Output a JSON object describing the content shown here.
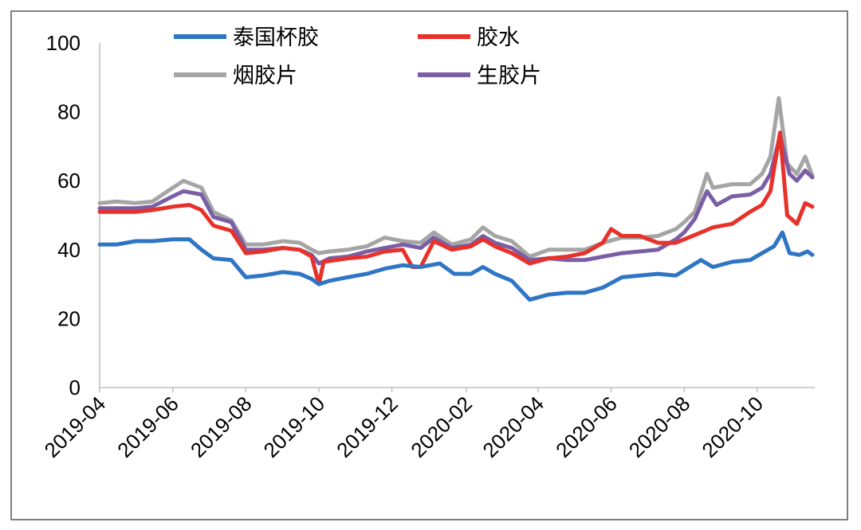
{
  "chart_data": {
    "type": "line",
    "title": "",
    "xlabel": "",
    "ylabel": "",
    "ylim": [
      0,
      100
    ],
    "y_ticks": [
      "0",
      "20",
      "40",
      "60",
      "80",
      "100"
    ],
    "x_ticks": [
      "2019-04",
      "2019-06",
      "2019-08",
      "2019-10",
      "2019-12",
      "2020-02",
      "2020-04",
      "2020-06",
      "2020-08",
      "2020-10"
    ],
    "grid": false,
    "legend_position": "top",
    "series": [
      {
        "name": "泰国杯胶",
        "color": "#2e75c6",
        "points": [
          [
            "2019-04-01",
            41.5
          ],
          [
            "2019-04-15",
            41.5
          ],
          [
            "2019-05-01",
            42.5
          ],
          [
            "2019-05-15",
            42.5
          ],
          [
            "2019-06-01",
            43
          ],
          [
            "2019-06-15",
            43
          ],
          [
            "2019-06-25",
            40
          ],
          [
            "2019-07-05",
            37.5
          ],
          [
            "2019-07-20",
            37
          ],
          [
            "2019-08-01",
            32
          ],
          [
            "2019-08-15",
            32.5
          ],
          [
            "2019-09-01",
            33.5
          ],
          [
            "2019-09-15",
            33
          ],
          [
            "2019-09-25",
            31.5
          ],
          [
            "2019-10-01",
            30
          ],
          [
            "2019-10-10",
            31
          ],
          [
            "2019-10-25",
            32
          ],
          [
            "2019-11-10",
            33
          ],
          [
            "2019-11-25",
            34.5
          ],
          [
            "2019-12-10",
            35.5
          ],
          [
            "2019-12-25",
            35
          ],
          [
            "2020-01-10",
            36
          ],
          [
            "2020-01-22",
            33
          ],
          [
            "2020-02-05",
            33
          ],
          [
            "2020-02-15",
            35
          ],
          [
            "2020-02-25",
            33
          ],
          [
            "2020-03-10",
            31
          ],
          [
            "2020-03-25",
            25.5
          ],
          [
            "2020-04-10",
            27
          ],
          [
            "2020-04-25",
            27.5
          ],
          [
            "2020-05-10",
            27.5
          ],
          [
            "2020-05-25",
            29
          ],
          [
            "2020-06-10",
            32
          ],
          [
            "2020-06-25",
            32.5
          ],
          [
            "2020-07-10",
            33
          ],
          [
            "2020-07-25",
            32.5
          ],
          [
            "2020-08-01",
            34
          ],
          [
            "2020-08-15",
            37
          ],
          [
            "2020-08-25",
            35
          ],
          [
            "2020-09-10",
            36.5
          ],
          [
            "2020-09-25",
            37
          ],
          [
            "2020-10-05",
            39
          ],
          [
            "2020-10-15",
            41
          ],
          [
            "2020-10-22",
            45
          ],
          [
            "2020-10-28",
            39
          ],
          [
            "2020-11-05",
            38.5
          ],
          [
            "2020-11-12",
            39.5
          ],
          [
            "2020-11-16",
            38.5
          ]
        ]
      },
      {
        "name": "胶水",
        "color": "#e8312a",
        "points": [
          [
            "2019-04-01",
            51
          ],
          [
            "2019-04-15",
            51
          ],
          [
            "2019-05-01",
            51
          ],
          [
            "2019-05-15",
            51.5
          ],
          [
            "2019-06-01",
            52.5
          ],
          [
            "2019-06-15",
            53
          ],
          [
            "2019-06-25",
            51.5
          ],
          [
            "2019-07-05",
            47
          ],
          [
            "2019-07-20",
            45.5
          ],
          [
            "2019-08-01",
            39
          ],
          [
            "2019-08-15",
            39.5
          ],
          [
            "2019-09-01",
            40.5
          ],
          [
            "2019-09-15",
            40
          ],
          [
            "2019-09-25",
            38
          ],
          [
            "2019-10-01",
            30
          ],
          [
            "2019-10-05",
            36.5
          ],
          [
            "2019-10-25",
            37.5
          ],
          [
            "2019-11-10",
            38
          ],
          [
            "2019-11-25",
            39.5
          ],
          [
            "2019-12-10",
            40
          ],
          [
            "2019-12-18",
            35
          ],
          [
            "2019-12-25",
            35
          ],
          [
            "2020-01-05",
            42.5
          ],
          [
            "2020-01-20",
            40
          ],
          [
            "2020-02-05",
            41
          ],
          [
            "2020-02-15",
            43
          ],
          [
            "2020-02-25",
            41
          ],
          [
            "2020-03-10",
            39
          ],
          [
            "2020-03-25",
            36
          ],
          [
            "2020-04-10",
            37.5
          ],
          [
            "2020-04-25",
            38
          ],
          [
            "2020-05-10",
            39
          ],
          [
            "2020-05-25",
            42
          ],
          [
            "2020-06-01",
            46
          ],
          [
            "2020-06-10",
            44
          ],
          [
            "2020-06-25",
            44
          ],
          [
            "2020-07-10",
            42
          ],
          [
            "2020-07-25",
            42
          ],
          [
            "2020-08-01",
            43
          ],
          [
            "2020-08-15",
            45
          ],
          [
            "2020-08-25",
            46.5
          ],
          [
            "2020-09-10",
            47.5
          ],
          [
            "2020-09-25",
            51
          ],
          [
            "2020-10-05",
            53
          ],
          [
            "2020-10-12",
            57
          ],
          [
            "2020-10-20",
            74
          ],
          [
            "2020-10-26",
            50
          ],
          [
            "2020-11-03",
            47.5
          ],
          [
            "2020-11-10",
            53.5
          ],
          [
            "2020-11-16",
            52.5
          ]
        ]
      },
      {
        "name": "烟胶片",
        "color": "#a5a5a5",
        "points": [
          [
            "2019-04-01",
            53.5
          ],
          [
            "2019-04-15",
            54
          ],
          [
            "2019-05-01",
            53.5
          ],
          [
            "2019-05-15",
            54
          ],
          [
            "2019-06-01",
            58
          ],
          [
            "2019-06-10",
            60
          ],
          [
            "2019-06-25",
            58
          ],
          [
            "2019-07-05",
            51
          ],
          [
            "2019-07-20",
            48.5
          ],
          [
            "2019-08-01",
            41.5
          ],
          [
            "2019-08-15",
            41.5
          ],
          [
            "2019-09-01",
            42.5
          ],
          [
            "2019-09-15",
            42
          ],
          [
            "2019-09-25",
            40
          ],
          [
            "2019-10-01",
            39
          ],
          [
            "2019-10-10",
            39.5
          ],
          [
            "2019-10-25",
            40
          ],
          [
            "2019-11-10",
            41
          ],
          [
            "2019-11-25",
            43.5
          ],
          [
            "2019-12-10",
            42.5
          ],
          [
            "2019-12-25",
            42
          ],
          [
            "2020-01-05",
            45
          ],
          [
            "2020-01-20",
            41.5
          ],
          [
            "2020-02-05",
            43
          ],
          [
            "2020-02-15",
            46.5
          ],
          [
            "2020-02-25",
            44
          ],
          [
            "2020-03-10",
            42.5
          ],
          [
            "2020-03-25",
            38
          ],
          [
            "2020-04-10",
            40
          ],
          [
            "2020-04-25",
            40
          ],
          [
            "2020-05-10",
            40
          ],
          [
            "2020-05-25",
            42
          ],
          [
            "2020-06-10",
            43.5
          ],
          [
            "2020-06-25",
            43.5
          ],
          [
            "2020-07-10",
            44
          ],
          [
            "2020-07-25",
            46
          ],
          [
            "2020-08-01",
            48
          ],
          [
            "2020-08-10",
            51
          ],
          [
            "2020-08-20",
            62
          ],
          [
            "2020-08-25",
            58
          ],
          [
            "2020-09-10",
            59
          ],
          [
            "2020-09-25",
            59
          ],
          [
            "2020-10-05",
            62
          ],
          [
            "2020-10-12",
            67
          ],
          [
            "2020-10-19",
            84
          ],
          [
            "2020-10-26",
            65
          ],
          [
            "2020-11-03",
            62
          ],
          [
            "2020-11-10",
            67
          ],
          [
            "2020-11-16",
            61.5
          ]
        ]
      },
      {
        "name": "生胶片",
        "color": "#7a5ea6",
        "points": [
          [
            "2019-04-01",
            52
          ],
          [
            "2019-04-15",
            52
          ],
          [
            "2019-05-01",
            52
          ],
          [
            "2019-05-15",
            52.5
          ],
          [
            "2019-06-01",
            55.5
          ],
          [
            "2019-06-10",
            57
          ],
          [
            "2019-06-25",
            56
          ],
          [
            "2019-07-05",
            49.5
          ],
          [
            "2019-07-20",
            48
          ],
          [
            "2019-08-01",
            40
          ],
          [
            "2019-08-15",
            40
          ],
          [
            "2019-09-01",
            40.5
          ],
          [
            "2019-09-15",
            40
          ],
          [
            "2019-09-25",
            38.5
          ],
          [
            "2019-10-01",
            36
          ],
          [
            "2019-10-10",
            37.5
          ],
          [
            "2019-10-25",
            38
          ],
          [
            "2019-11-10",
            39.5
          ],
          [
            "2019-11-25",
            40.5
          ],
          [
            "2019-12-10",
            41.5
          ],
          [
            "2019-12-25",
            40.5
          ],
          [
            "2020-01-05",
            43.5
          ],
          [
            "2020-01-20",
            40.5
          ],
          [
            "2020-02-05",
            41.5
          ],
          [
            "2020-02-15",
            44
          ],
          [
            "2020-02-25",
            42
          ],
          [
            "2020-03-10",
            40.5
          ],
          [
            "2020-03-25",
            37
          ],
          [
            "2020-04-10",
            37.5
          ],
          [
            "2020-04-25",
            37
          ],
          [
            "2020-05-10",
            37
          ],
          [
            "2020-05-25",
            38
          ],
          [
            "2020-06-10",
            39
          ],
          [
            "2020-06-25",
            39.5
          ],
          [
            "2020-07-10",
            40
          ],
          [
            "2020-07-25",
            43
          ],
          [
            "2020-08-01",
            45
          ],
          [
            "2020-08-10",
            49
          ],
          [
            "2020-08-20",
            57
          ],
          [
            "2020-08-28",
            53
          ],
          [
            "2020-09-10",
            55.5
          ],
          [
            "2020-09-25",
            56
          ],
          [
            "2020-10-05",
            58
          ],
          [
            "2020-10-12",
            62
          ],
          [
            "2020-10-20",
            73
          ],
          [
            "2020-10-28",
            62
          ],
          [
            "2020-11-03",
            60
          ],
          [
            "2020-11-10",
            63
          ],
          [
            "2020-11-16",
            61
          ]
        ]
      }
    ]
  }
}
